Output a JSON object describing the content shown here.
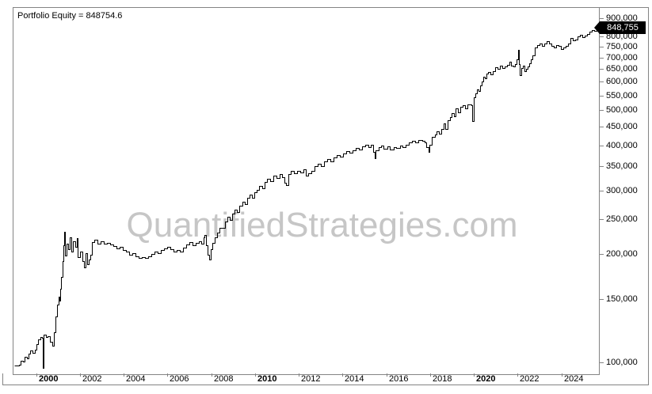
{
  "title": "Portfolio Equity = 848754.6",
  "watermark": "QuantifiedStrategies.com",
  "badge": {
    "value_label": "848,755"
  },
  "colors": {
    "line": "#000000",
    "axis_border": "#848484",
    "tick_label": "#000000",
    "watermark": "#c6c6c6",
    "badge_bg": "#000000",
    "badge_text": "#ffffff",
    "background": "#ffffff"
  },
  "chart_data": {
    "type": "line",
    "title": "Portfolio Equity = 848754.6",
    "ylabel": "",
    "xlabel": "",
    "grid": false,
    "legend_position": "none",
    "final_value": 848754.6,
    "x_axis": {
      "min": 1999.0,
      "max": 2025.75,
      "ticks": [
        {
          "year": 2000,
          "label": "2000",
          "bold": true
        },
        {
          "year": 2002,
          "label": "2002",
          "bold": false
        },
        {
          "year": 2004,
          "label": "2004",
          "bold": false
        },
        {
          "year": 2006,
          "label": "2006",
          "bold": false
        },
        {
          "year": 2008,
          "label": "2008",
          "bold": false
        },
        {
          "year": 2010,
          "label": "2010",
          "bold": true
        },
        {
          "year": 2012,
          "label": "2012",
          "bold": false
        },
        {
          "year": 2014,
          "label": "2014",
          "bold": false
        },
        {
          "year": 2016,
          "label": "2016",
          "bold": false
        },
        {
          "year": 2018,
          "label": "2018",
          "bold": false
        },
        {
          "year": 2020,
          "label": "2020",
          "bold": true
        },
        {
          "year": 2022,
          "label": "2022",
          "bold": false
        },
        {
          "year": 2024,
          "label": "2024",
          "bold": false
        }
      ]
    },
    "y_axis": {
      "scale": "log",
      "position": "right",
      "min": 93200,
      "max": 961000,
      "ticks": [
        {
          "value": 900000,
          "label": "900,000"
        },
        {
          "value": 800000,
          "label": "800,000"
        },
        {
          "value": 750000,
          "label": "750,000"
        },
        {
          "value": 700000,
          "label": "700,000"
        },
        {
          "value": 650000,
          "label": "650,000"
        },
        {
          "value": 600000,
          "label": "600,000"
        },
        {
          "value": 550000,
          "label": "550,000"
        },
        {
          "value": 500000,
          "label": "500,000"
        },
        {
          "value": 450000,
          "label": "450,000"
        },
        {
          "value": 400000,
          "label": "400,000"
        },
        {
          "value": 350000,
          "label": "350,000"
        },
        {
          "value": 300000,
          "label": "300,000"
        },
        {
          "value": 250000,
          "label": "250,000"
        },
        {
          "value": 200000,
          "label": "200,000"
        },
        {
          "value": 150000,
          "label": "150,000"
        },
        {
          "value": 100000,
          "label": "100,000"
        }
      ]
    },
    "series": [
      {
        "name": "Portfolio Equity",
        "color": "#000000",
        "points": [
          [
            1999.05,
            98000
          ],
          [
            1999.25,
            98300
          ],
          [
            1999.34,
            101000
          ],
          [
            1999.45,
            100600
          ],
          [
            1999.52,
            103600
          ],
          [
            1999.63,
            102500
          ],
          [
            1999.7,
            105700
          ],
          [
            1999.77,
            107900
          ],
          [
            1999.88,
            106300
          ],
          [
            1999.99,
            108400
          ],
          [
            2000.06,
            112400
          ],
          [
            2000.13,
            115700
          ],
          [
            2000.24,
            117500
          ],
          [
            2000.31,
            117000
          ],
          [
            2000.33,
            96600
          ],
          [
            2000.39,
            119400
          ],
          [
            2000.5,
            117500
          ],
          [
            2000.57,
            118000
          ],
          [
            2000.68,
            114000
          ],
          [
            2000.78,
            111200
          ],
          [
            2000.86,
            121000
          ],
          [
            2000.93,
            134000
          ],
          [
            2001.0,
            144600
          ],
          [
            2001.07,
            152100
          ],
          [
            2001.11,
            148000
          ],
          [
            2001.15,
            160000
          ],
          [
            2001.18,
            172600
          ],
          [
            2001.25,
            191000
          ],
          [
            2001.29,
            211300
          ],
          [
            2001.33,
            230100
          ],
          [
            2001.36,
            197700
          ],
          [
            2001.43,
            213300
          ],
          [
            2001.51,
            206000
          ],
          [
            2001.58,
            222100
          ],
          [
            2001.65,
            202800
          ],
          [
            2001.72,
            216600
          ],
          [
            2001.83,
            209000
          ],
          [
            2001.9,
            221000
          ],
          [
            2001.94,
            196000
          ],
          [
            2002.05,
            203000
          ],
          [
            2002.16,
            191000
          ],
          [
            2002.23,
            183000
          ],
          [
            2002.3,
            201000
          ],
          [
            2002.37,
            187000
          ],
          [
            2002.45,
            192800
          ],
          [
            2002.52,
            198700
          ],
          [
            2002.59,
            215000
          ],
          [
            2002.7,
            218700
          ],
          [
            2002.84,
            213600
          ],
          [
            2002.99,
            216600
          ],
          [
            2003.13,
            213600
          ],
          [
            2003.28,
            214600
          ],
          [
            2003.42,
            212500
          ],
          [
            2003.57,
            210400
          ],
          [
            2003.71,
            207400
          ],
          [
            2003.86,
            209400
          ],
          [
            2004.0,
            205400
          ],
          [
            2004.14,
            202400
          ],
          [
            2004.29,
            198700
          ],
          [
            2004.43,
            200900
          ],
          [
            2004.58,
            197000
          ],
          [
            2004.72,
            194900
          ],
          [
            2004.87,
            196000
          ],
          [
            2005.01,
            194900
          ],
          [
            2005.16,
            197000
          ],
          [
            2005.3,
            199800
          ],
          [
            2005.45,
            203300
          ],
          [
            2005.59,
            200900
          ],
          [
            2005.73,
            204400
          ],
          [
            2005.88,
            207400
          ],
          [
            2006.02,
            209400
          ],
          [
            2006.17,
            206400
          ],
          [
            2006.31,
            203300
          ],
          [
            2006.45,
            205400
          ],
          [
            2006.6,
            202400
          ],
          [
            2006.75,
            208400
          ],
          [
            2006.89,
            212500
          ],
          [
            2007.03,
            215600
          ],
          [
            2007.18,
            211400
          ],
          [
            2007.32,
            214600
          ],
          [
            2007.47,
            216600
          ],
          [
            2007.58,
            213600
          ],
          [
            2007.68,
            222100
          ],
          [
            2007.72,
            225600
          ],
          [
            2007.79,
            211400
          ],
          [
            2007.87,
            198700
          ],
          [
            2007.94,
            192800
          ],
          [
            2008.01,
            206400
          ],
          [
            2008.08,
            214600
          ],
          [
            2008.19,
            222100
          ],
          [
            2008.3,
            229100
          ],
          [
            2008.41,
            236000
          ],
          [
            2008.55,
            236500
          ],
          [
            2008.66,
            245500
          ],
          [
            2008.77,
            253000
          ],
          [
            2008.88,
            247700
          ],
          [
            2008.99,
            258300
          ],
          [
            2009.09,
            264900
          ],
          [
            2009.2,
            261000
          ],
          [
            2009.31,
            271700
          ],
          [
            2009.46,
            278700
          ],
          [
            2009.56,
            274000
          ],
          [
            2009.67,
            285900
          ],
          [
            2009.78,
            291800
          ],
          [
            2009.89,
            285900
          ],
          [
            2010.0,
            296000
          ],
          [
            2010.11,
            300600
          ],
          [
            2010.21,
            308400
          ],
          [
            2010.36,
            304000
          ],
          [
            2010.47,
            316300
          ],
          [
            2010.58,
            322900
          ],
          [
            2010.72,
            318000
          ],
          [
            2010.86,
            329600
          ],
          [
            2011.01,
            324000
          ],
          [
            2011.15,
            332600
          ],
          [
            2011.26,
            326000
          ],
          [
            2011.37,
            315000
          ],
          [
            2011.44,
            310000
          ],
          [
            2011.55,
            332600
          ],
          [
            2011.66,
            339600
          ],
          [
            2011.8,
            334000
          ],
          [
            2011.95,
            340400
          ],
          [
            2012.09,
            336000
          ],
          [
            2012.24,
            342800
          ],
          [
            2012.34,
            329600
          ],
          [
            2012.45,
            334000
          ],
          [
            2012.6,
            340400
          ],
          [
            2012.74,
            350000
          ],
          [
            2012.89,
            355600
          ],
          [
            2013.03,
            350000
          ],
          [
            2013.18,
            360700
          ],
          [
            2013.32,
            366500
          ],
          [
            2013.47,
            360700
          ],
          [
            2013.61,
            369900
          ],
          [
            2013.76,
            375900
          ],
          [
            2013.9,
            372000
          ],
          [
            2014.05,
            379400
          ],
          [
            2014.19,
            385500
          ],
          [
            2014.33,
            381000
          ],
          [
            2014.48,
            387300
          ],
          [
            2014.62,
            392700
          ],
          [
            2014.77,
            389000
          ],
          [
            2014.91,
            397200
          ],
          [
            2015.06,
            400900
          ],
          [
            2015.2,
            395000
          ],
          [
            2015.31,
            400900
          ],
          [
            2015.42,
            383000
          ],
          [
            2015.49,
            368200
          ],
          [
            2015.56,
            387300
          ],
          [
            2015.67,
            395000
          ],
          [
            2015.78,
            399100
          ],
          [
            2015.92,
            391000
          ],
          [
            2016.07,
            397200
          ],
          [
            2016.21,
            389000
          ],
          [
            2016.36,
            395000
          ],
          [
            2016.5,
            394000
          ],
          [
            2016.65,
            399100
          ],
          [
            2016.79,
            395000
          ],
          [
            2016.93,
            400900
          ],
          [
            2017.08,
            407400
          ],
          [
            2017.22,
            411200
          ],
          [
            2017.37,
            407400
          ],
          [
            2017.51,
            413000
          ],
          [
            2017.66,
            411200
          ],
          [
            2017.8,
            407400
          ],
          [
            2017.87,
            395000
          ],
          [
            2017.95,
            383000
          ],
          [
            2018.02,
            400900
          ],
          [
            2018.13,
            421700
          ],
          [
            2018.24,
            428500
          ],
          [
            2018.34,
            436500
          ],
          [
            2018.45,
            430000
          ],
          [
            2018.56,
            443600
          ],
          [
            2018.67,
            459200
          ],
          [
            2018.74,
            444000
          ],
          [
            2018.85,
            468800
          ],
          [
            2018.96,
            478600
          ],
          [
            2019.03,
            490900
          ],
          [
            2019.14,
            480000
          ],
          [
            2019.21,
            505800
          ],
          [
            2019.32,
            494000
          ],
          [
            2019.43,
            510500
          ],
          [
            2019.54,
            516400
          ],
          [
            2019.65,
            505800
          ],
          [
            2019.75,
            518800
          ],
          [
            2019.86,
            520000
          ],
          [
            2019.94,
            516400
          ],
          [
            2019.97,
            466600
          ],
          [
            2020.04,
            543300
          ],
          [
            2020.11,
            557200
          ],
          [
            2020.19,
            571500
          ],
          [
            2020.26,
            565000
          ],
          [
            2020.33,
            586100
          ],
          [
            2020.4,
            601200
          ],
          [
            2020.47,
            619400
          ],
          [
            2020.55,
            612000
          ],
          [
            2020.62,
            631000
          ],
          [
            2020.69,
            638300
          ],
          [
            2020.8,
            628000
          ],
          [
            2020.91,
            641200
          ],
          [
            2021.02,
            657600
          ],
          [
            2021.13,
            651000
          ],
          [
            2021.23,
            663700
          ],
          [
            2021.34,
            654000
          ],
          [
            2021.45,
            660000
          ],
          [
            2021.56,
            668300
          ],
          [
            2021.67,
            680800
          ],
          [
            2021.74,
            663700
          ],
          [
            2021.85,
            662000
          ],
          [
            2021.92,
            670000
          ],
          [
            2021.99,
            691800
          ],
          [
            2022.07,
            734500
          ],
          [
            2022.1,
            672000
          ],
          [
            2022.14,
            625200
          ],
          [
            2022.21,
            654000
          ],
          [
            2022.28,
            663700
          ],
          [
            2022.35,
            641200
          ],
          [
            2022.42,
            651000
          ],
          [
            2022.5,
            662000
          ],
          [
            2022.57,
            676000
          ],
          [
            2022.64,
            691800
          ],
          [
            2022.71,
            709600
          ],
          [
            2022.82,
            746400
          ],
          [
            2022.93,
            757000
          ],
          [
            2023.04,
            765600
          ],
          [
            2023.14,
            755000
          ],
          [
            2023.25,
            767000
          ],
          [
            2023.36,
            776200
          ],
          [
            2023.47,
            765600
          ],
          [
            2023.58,
            753400
          ],
          [
            2023.69,
            746400
          ],
          [
            2023.79,
            757000
          ],
          [
            2023.9,
            755000
          ],
          [
            2024.01,
            739000
          ],
          [
            2024.12,
            746400
          ],
          [
            2024.23,
            753400
          ],
          [
            2024.34,
            765600
          ],
          [
            2024.45,
            792900
          ],
          [
            2024.55,
            783000
          ],
          [
            2024.66,
            786000
          ],
          [
            2024.77,
            801600
          ],
          [
            2024.88,
            809000
          ],
          [
            2024.99,
            797000
          ],
          [
            2025.1,
            805000
          ],
          [
            2025.21,
            813000
          ],
          [
            2025.32,
            826100
          ],
          [
            2025.43,
            833800
          ],
          [
            2025.53,
            830000
          ],
          [
            2025.64,
            847300
          ],
          [
            2025.7,
            848754.6
          ]
        ]
      }
    ]
  }
}
